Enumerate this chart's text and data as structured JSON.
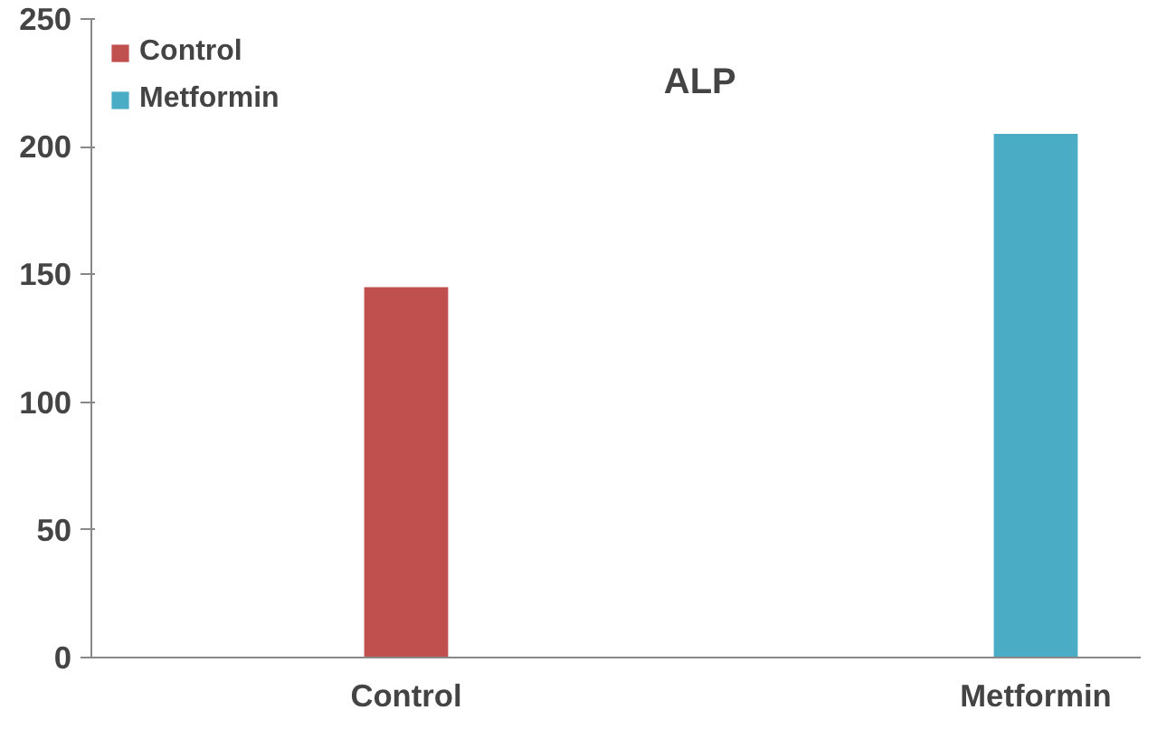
{
  "chart_data": {
    "type": "bar",
    "title": "ALP",
    "categories": [
      null,
      "Control",
      null,
      null,
      "Metformin"
    ],
    "series": [
      {
        "name": "Control",
        "color": "#c0504d",
        "values": [
          null,
          145,
          null,
          null,
          null
        ]
      },
      {
        "name": "Metformin",
        "color": "#4bacc6",
        "values": [
          null,
          null,
          null,
          null,
          205
        ]
      }
    ],
    "ylim": [
      0,
      250
    ],
    "yticks": [
      0,
      50,
      100,
      150,
      200,
      250
    ],
    "grid": false,
    "legend": "top left"
  }
}
